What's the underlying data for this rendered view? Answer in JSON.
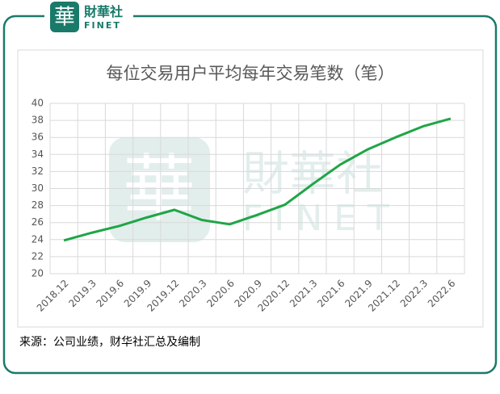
{
  "logo": {
    "name": "財華社",
    "sub": "FINET",
    "mark": "華"
  },
  "chart_data": {
    "type": "line",
    "title": "每位交易用户平均每年交易笔数（笔）",
    "categories": [
      "2018.12",
      "2019.3",
      "2019.6",
      "2019.9",
      "2019.12",
      "2020.3",
      "2020.6",
      "2020.9",
      "2020.12",
      "2021.3",
      "2021.6",
      "2021.9",
      "2021.12",
      "2022.3",
      "2022.6"
    ],
    "values": [
      23.9,
      24.8,
      25.6,
      26.6,
      27.5,
      26.3,
      25.8,
      26.9,
      28.1,
      30.5,
      32.8,
      34.6,
      36.0,
      37.3,
      38.2
    ],
    "color": "#1fa547",
    "ylim": [
      20,
      40
    ],
    "yticks": [
      20,
      22,
      24,
      26,
      28,
      30,
      32,
      34,
      36,
      38,
      40
    ],
    "grid": true
  },
  "source": "来源：公司业绩，财华社汇总及编制"
}
